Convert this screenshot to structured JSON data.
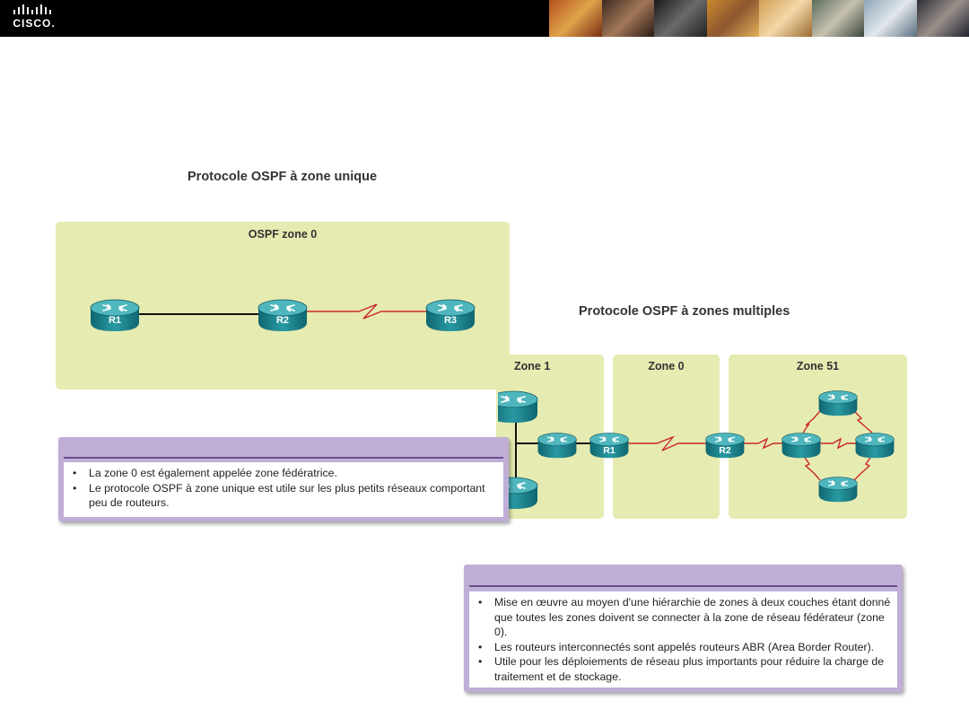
{
  "single_area": {
    "title": "Protocole OSPF à zone unique",
    "zone_label": "OSPF zone 0",
    "routers": [
      "R1",
      "R2",
      "R3"
    ],
    "notes": [
      "La zone 0 est également appelée zone fédératrice.",
      "Le protocole OSPF à zone unique est utile sur les plus petits réseaux comportant peu de routeurs."
    ]
  },
  "multi_area": {
    "title": "Protocole OSPF à zones multiples",
    "zones": [
      "Zone 1",
      "Zone 0",
      "Zone 51"
    ],
    "routers": [
      "R1",
      "R2"
    ],
    "notes": [
      "Mise en œuvre au moyen d'une hiérarchie de zones à deux couches étant donné que toutes les zones doivent se connecter à la zone de réseau fédérateur (zone 0).",
      "Les routeurs interconnectés sont appelés routeurs ABR (Area Border Router).",
      "Utile pour les déploiements de réseau plus importants pour réduire la charge de traitement et de stockage."
    ]
  },
  "colors": {
    "zone_fill": "#e6ebb2",
    "note_frame": "#bfaed6",
    "serial_link": "#c8282a",
    "router_body": "#1f8a91"
  }
}
